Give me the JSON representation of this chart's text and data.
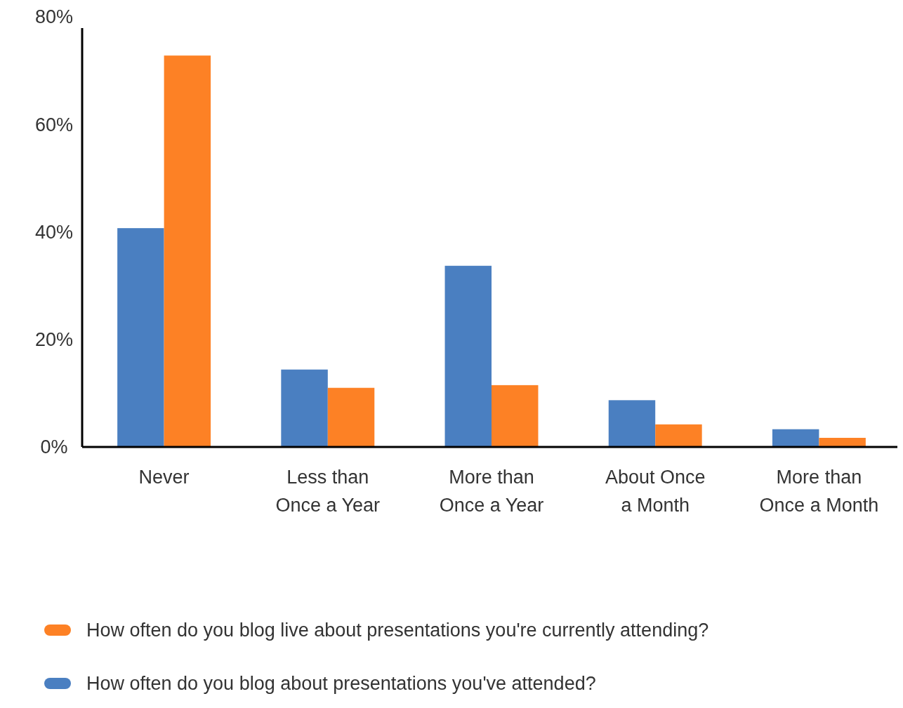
{
  "chart_data": {
    "type": "bar",
    "categories": [
      "Never",
      "Less than\nOnce a Year",
      "More than\nOnce a Year",
      "About Once\na Month",
      "More than\nOnce a Month"
    ],
    "series": [
      {
        "name": "How often do you blog about presentations you've attended?",
        "color": "#4a7fc1",
        "values": [
          40.7,
          14.4,
          33.7,
          8.7,
          3.3
        ]
      },
      {
        "name": "How often do you blog live about presentations you're currently attending?",
        "color": "#fd8125",
        "values": [
          72.8,
          11.0,
          11.5,
          4.2,
          1.7
        ]
      }
    ],
    "ylim": [
      0,
      80
    ],
    "yticks": [
      {
        "value": 0,
        "label": "0%"
      },
      {
        "value": 20,
        "label": "20%"
      },
      {
        "value": 40,
        "label": "40%"
      },
      {
        "value": 60,
        "label": "60%"
      },
      {
        "value": 80,
        "label": "80%"
      }
    ],
    "grid": false,
    "legend": "bottom"
  }
}
